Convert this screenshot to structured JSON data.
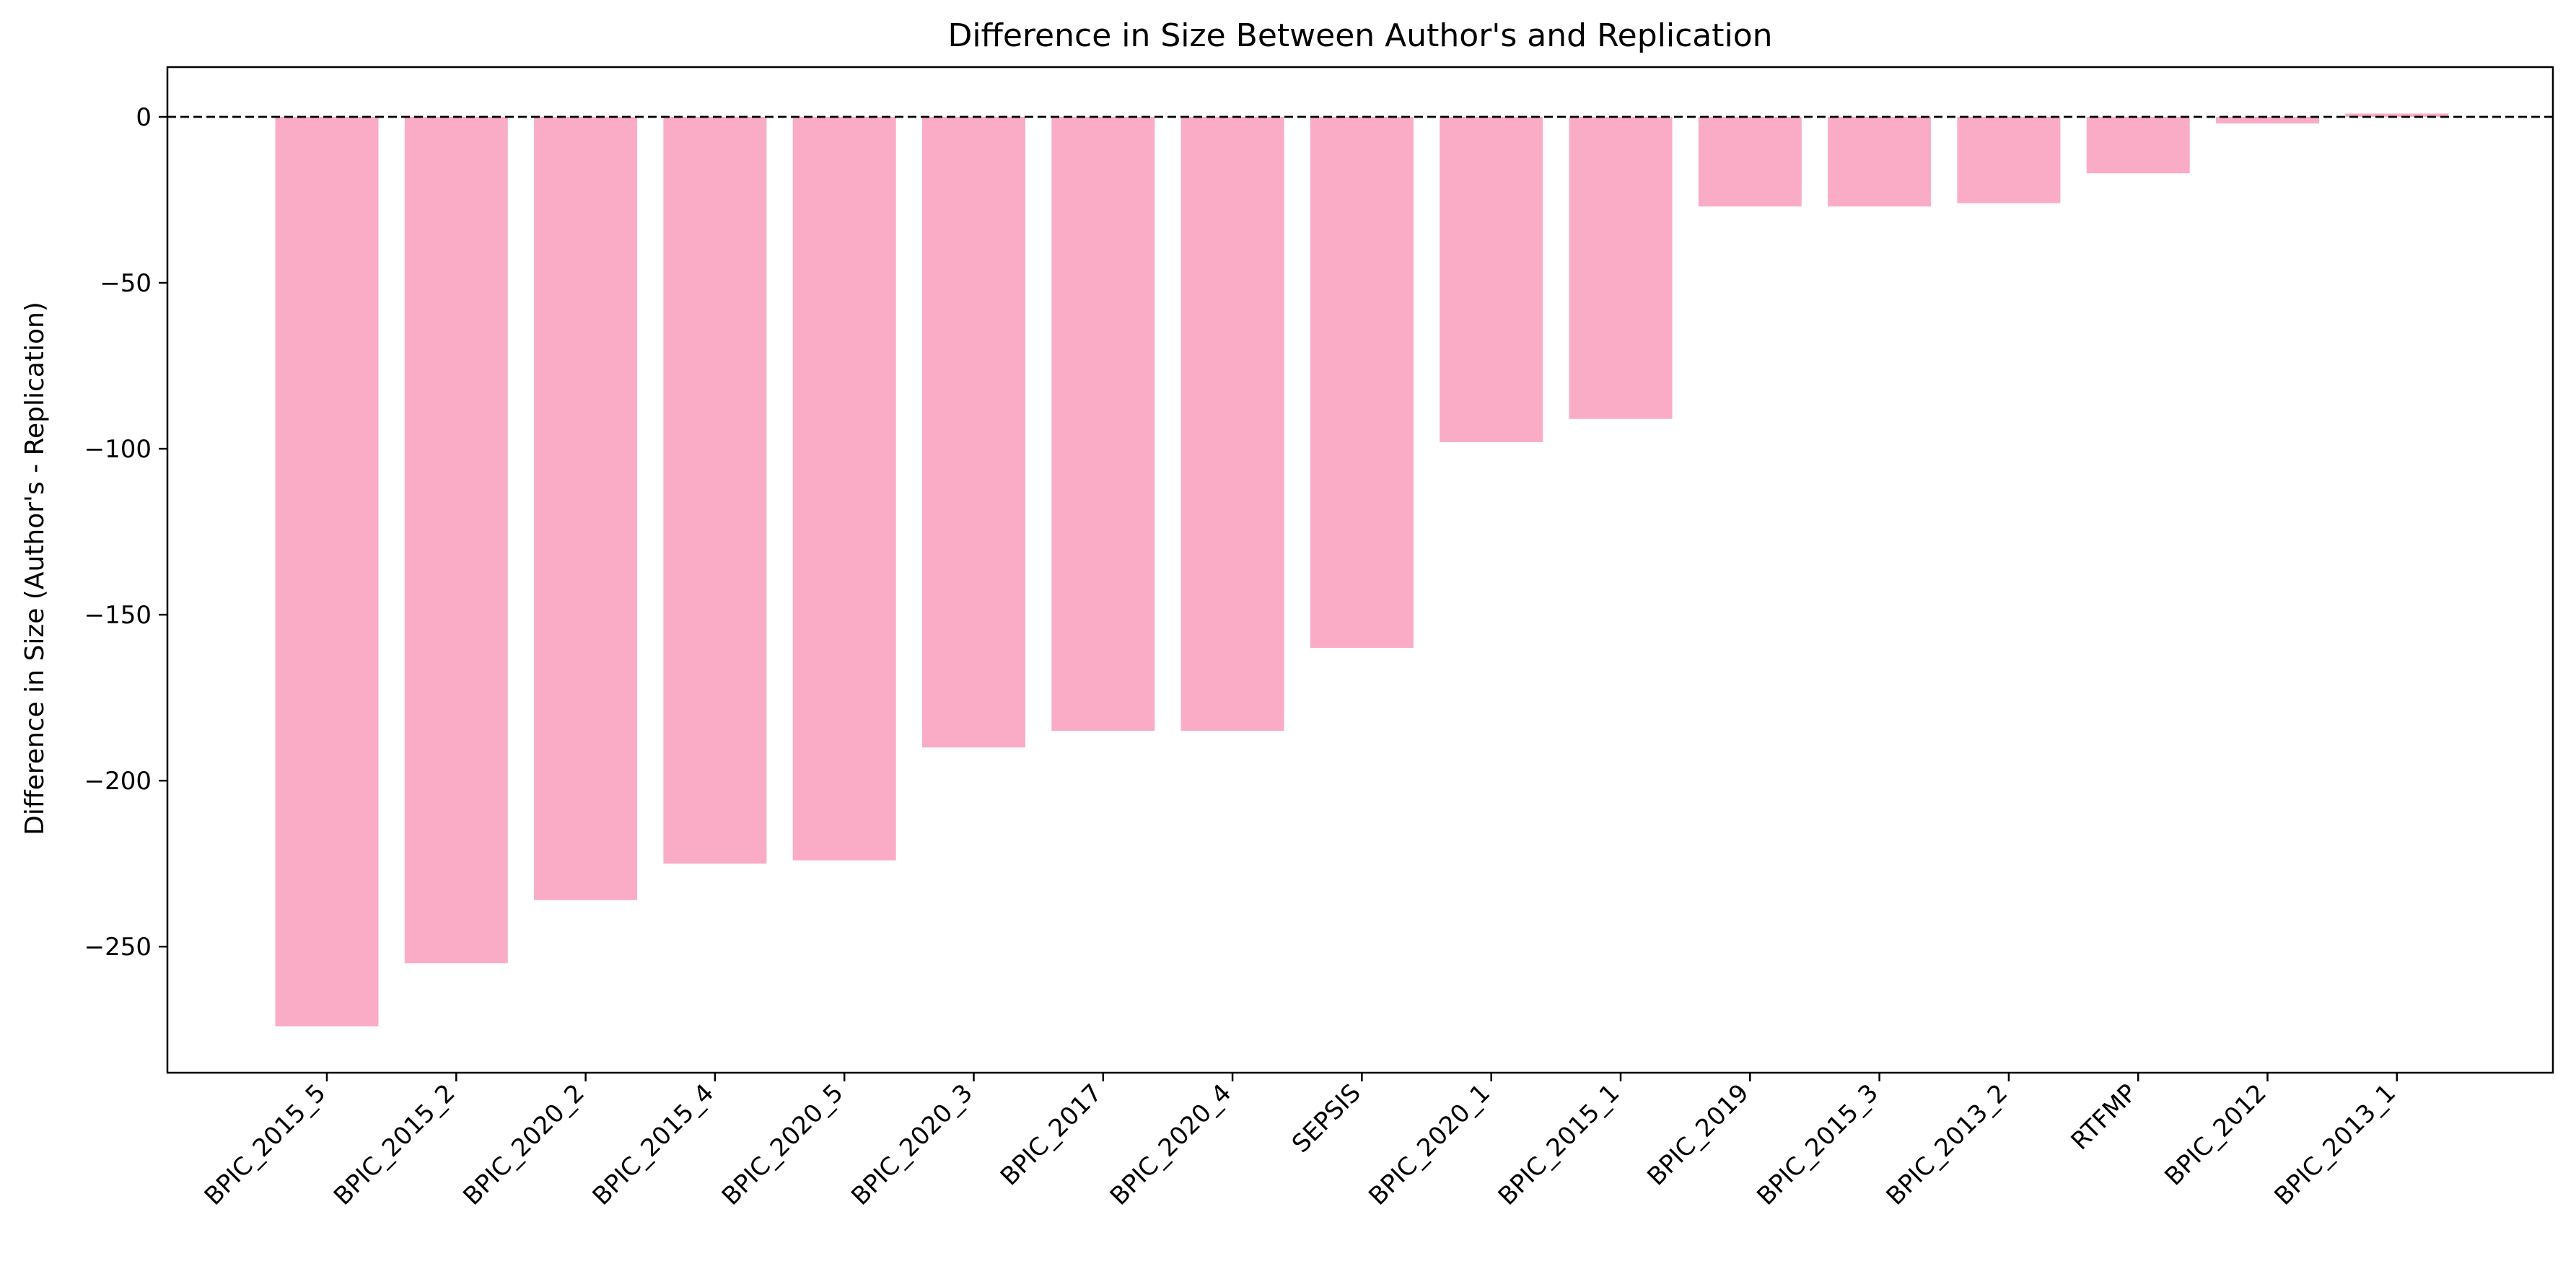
{
  "chart_data": {
    "type": "bar",
    "title": "Difference in Size Between Author's and Replication",
    "xlabel": "",
    "ylabel": "Difference in Size (Author's - Replication)",
    "categories": [
      "BPIC_2015_5",
      "BPIC_2015_2",
      "BPIC_2020_2",
      "BPIC_2015_4",
      "BPIC_2020_5",
      "BPIC_2020_3",
      "BPIC_2017",
      "BPIC_2020_4",
      "SEPSIS",
      "BPIC_2020_1",
      "BPIC_2015_1",
      "BPIC_2019",
      "BPIC_2015_3",
      "BPIC_2013_2",
      "RTFMP",
      "BPIC_2012",
      "BPIC_2013_1"
    ],
    "values": [
      -274,
      -255,
      -236,
      -225,
      -224,
      -190,
      -185,
      -185,
      -160,
      -98,
      -91,
      -27,
      -27,
      -26,
      -17,
      -2,
      1
    ],
    "ylim": [
      -288,
      15
    ],
    "yticks": [
      0,
      -50,
      -100,
      -150,
      -200,
      -250
    ],
    "ytick_labels": [
      "0",
      "−50",
      "−100",
      "−150",
      "−200",
      "−250"
    ],
    "reference_line": {
      "y": 0,
      "style": "dashed",
      "color": "#000000"
    },
    "bar_color": "#FAACC7",
    "grid": false,
    "legend": "none"
  }
}
